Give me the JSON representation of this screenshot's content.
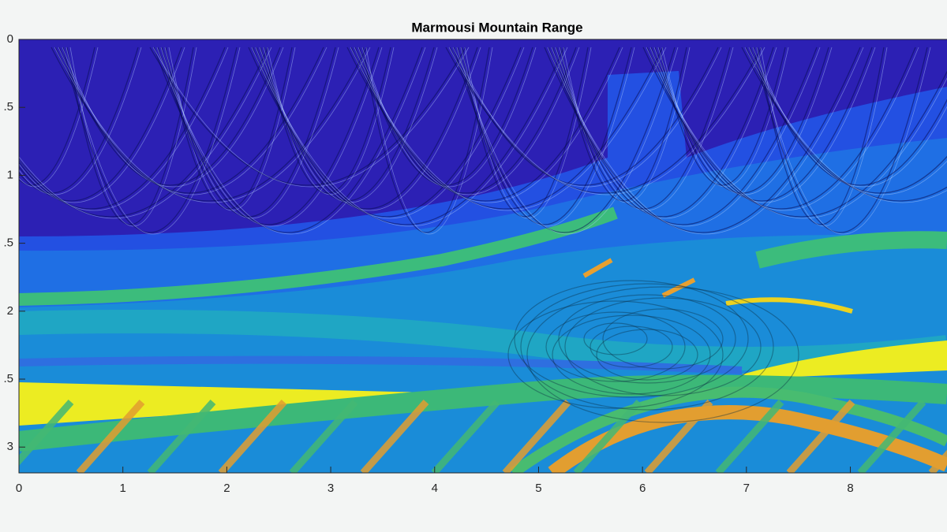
{
  "chart_data": {
    "type": "image",
    "title": "Marmousi Mountain Range",
    "xlim": [
      0,
      8.93
    ],
    "ylim": [
      0,
      3.19
    ],
    "xticks": [
      0,
      1,
      2,
      3,
      4,
      5,
      6,
      7,
      8
    ],
    "yticks": [
      0,
      {
        "value": 0.5,
        "label": ".5"
      },
      1,
      {
        "value": 1.5,
        "label": ".5"
      },
      2,
      {
        "value": 2.5,
        "label": ".5"
      },
      3
    ],
    "y_reversed": true
  }
}
